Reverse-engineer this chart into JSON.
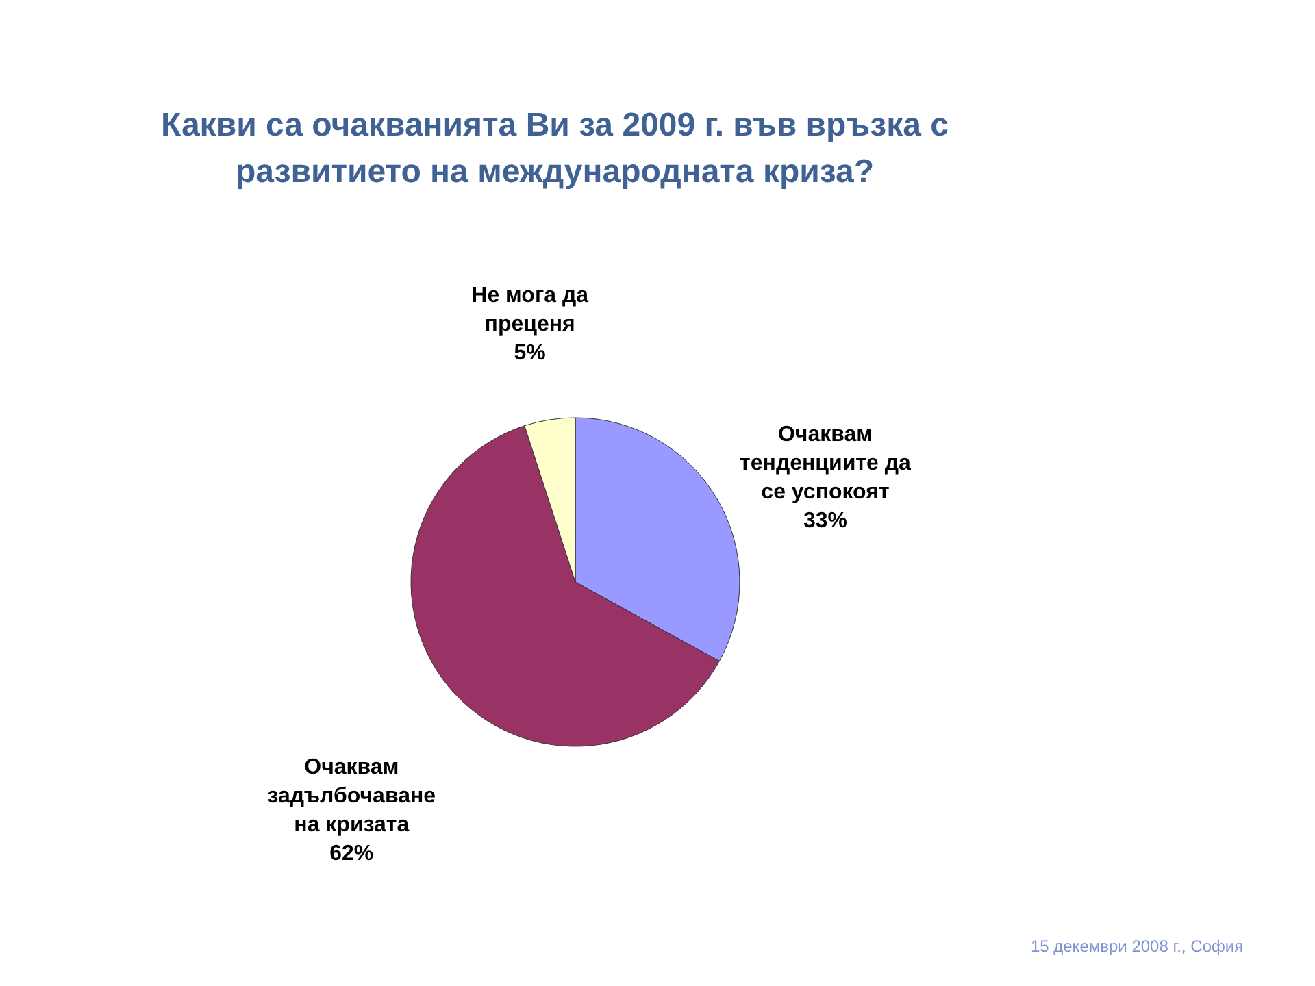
{
  "chart_data": {
    "type": "pie",
    "title": "Какви са очакванията Ви за 2009 г. във връзка с развитието на международната криза?",
    "categories": [
      "Очаквам тенденциите да се успокоят",
      "Очаквам задълбочаване на кризата",
      "Не мога да преценя"
    ],
    "values": [
      33,
      62,
      5
    ],
    "colors": [
      "#9999ff",
      "#993366",
      "#ffffcc"
    ],
    "value_labels": [
      "33%",
      "62%",
      "5%"
    ],
    "annotations": [
      "15 декември 2008 г., София"
    ]
  }
}
